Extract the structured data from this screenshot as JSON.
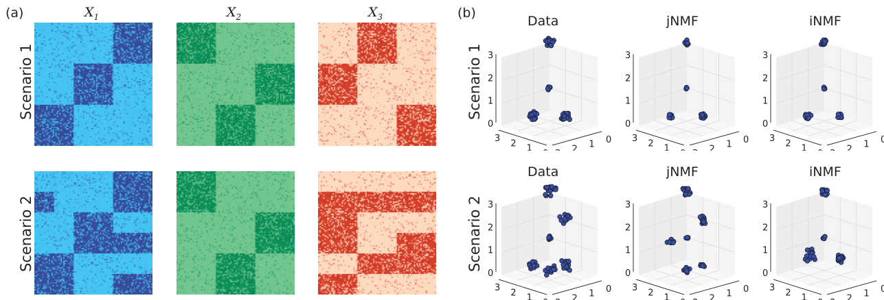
{
  "panel_a_label": "(a)",
  "panel_b_label": "(b)",
  "matrix_titles": [
    {
      "base": "X",
      "sub": "1"
    },
    {
      "base": "X",
      "sub": "2"
    },
    {
      "base": "X",
      "sub": "3"
    }
  ],
  "row_labels": [
    "Scenario 1",
    "Scenario 2"
  ],
  "scatter_titles": [
    "Data",
    "jNMF",
    "iNMF"
  ],
  "colors": {
    "x1_bg": "#3ec1f3",
    "x1_block": "#3c53a8",
    "x2_bg": "#6cc38a",
    "x2_block": "#0e9a60",
    "x3_bg": "#fcd9bd",
    "x3_block": "#e5432d",
    "point": "#3b4fa0",
    "pane": "#ededed"
  },
  "chart_data": [
    {
      "type": "heatmap",
      "title": "X1 — Scenario 1",
      "grid_size": 3,
      "block_pattern": [
        [
          0,
          0,
          1
        ],
        [
          0,
          1,
          0
        ],
        [
          1,
          0,
          0
        ]
      ]
    },
    {
      "type": "heatmap",
      "title": "X2 — Scenario 1",
      "grid_size": 3,
      "block_pattern": [
        [
          1,
          0,
          0
        ],
        [
          0,
          0,
          1
        ],
        [
          0,
          1,
          0
        ]
      ]
    },
    {
      "type": "heatmap",
      "title": "X3 — Scenario 1",
      "grid_size": 3,
      "block_pattern": [
        [
          0,
          1,
          0
        ],
        [
          1,
          0,
          0
        ],
        [
          0,
          0,
          1
        ]
      ]
    },
    {
      "type": "heatmap",
      "title": "X1 — Scenario 2",
      "grid_size": 6,
      "block_pattern": [
        [
          0,
          0,
          0,
          0,
          1,
          1
        ],
        [
          1,
          0,
          0,
          0,
          1,
          1
        ],
        [
          0,
          0,
          1,
          1,
          0,
          0
        ],
        [
          0,
          0,
          1,
          1,
          1,
          1
        ],
        [
          1,
          1,
          0,
          0,
          0,
          0
        ],
        [
          1,
          1,
          0,
          0,
          1,
          1
        ]
      ]
    },
    {
      "type": "heatmap",
      "title": "X2 — Scenario 2",
      "grid_size": 6,
      "block_pattern": [
        [
          1,
          1,
          0,
          0,
          0,
          0
        ],
        [
          1,
          1,
          0,
          0,
          0,
          0
        ],
        [
          0,
          0,
          0,
          0,
          1,
          1
        ],
        [
          0,
          0,
          0,
          0,
          1,
          1
        ],
        [
          0,
          0,
          1,
          1,
          0,
          0
        ],
        [
          0,
          0,
          1,
          1,
          0,
          0
        ]
      ]
    },
    {
      "type": "heatmap",
      "title": "X3 — Scenario 2",
      "grid_size": 6,
      "block_pattern": [
        [
          0,
          0,
          0,
          0,
          0,
          0
        ],
        [
          1,
          1,
          1,
          1,
          1,
          1
        ],
        [
          1,
          1,
          0,
          0,
          0,
          0
        ],
        [
          1,
          1,
          0,
          0,
          1,
          1
        ],
        [
          0,
          0,
          1,
          1,
          1,
          1
        ],
        [
          1,
          1,
          0,
          0,
          0,
          0
        ]
      ]
    },
    {
      "type": "scatter",
      "title": "Data",
      "scenario": "Scenario 1",
      "axis_range": [
        0,
        3
      ],
      "tick_labels": [
        "0",
        "1",
        "2",
        "3"
      ],
      "clusters": [
        {
          "x": 0,
          "y": 0,
          "z": 3,
          "spread": 0.15,
          "n": 18
        },
        {
          "x": 1,
          "y": 0,
          "z": 0,
          "spread": 0.15,
          "n": 18
        },
        {
          "x": 0,
          "y": 1,
          "z": 0,
          "spread": 0.15,
          "n": 18
        },
        {
          "x": 0,
          "y": 0,
          "z": 1,
          "spread": 0.08,
          "n": 6
        }
      ]
    },
    {
      "type": "scatter",
      "title": "jNMF",
      "scenario": "Scenario 1",
      "axis_range": [
        0,
        3
      ],
      "tick_labels": [
        "0",
        "1",
        "2",
        "3"
      ],
      "clusters": [
        {
          "x": 0,
          "y": 0,
          "z": 3,
          "spread": 0.08,
          "n": 14
        },
        {
          "x": 1,
          "y": 0,
          "z": 0,
          "spread": 0.08,
          "n": 14
        },
        {
          "x": 0,
          "y": 1,
          "z": 0,
          "spread": 0.08,
          "n": 14
        },
        {
          "x": 0,
          "y": 0,
          "z": 1,
          "spread": 0.04,
          "n": 4
        }
      ]
    },
    {
      "type": "scatter",
      "title": "iNMF",
      "scenario": "Scenario 1",
      "axis_range": [
        0,
        3
      ],
      "tick_labels": [
        "0",
        "1",
        "2",
        "3"
      ],
      "clusters": [
        {
          "x": 0,
          "y": 0,
          "z": 3,
          "spread": 0.1,
          "n": 14
        },
        {
          "x": 1,
          "y": 0,
          "z": 0,
          "spread": 0.1,
          "n": 14
        },
        {
          "x": 0,
          "y": 1,
          "z": 0,
          "spread": 0.1,
          "n": 14
        },
        {
          "x": 0,
          "y": 0,
          "z": 1,
          "spread": 0.04,
          "n": 4
        }
      ]
    },
    {
      "type": "scatter",
      "title": "Data",
      "scenario": "Scenario 2",
      "axis_range": [
        0,
        3
      ],
      "tick_labels": [
        "0",
        "1",
        "2",
        "3"
      ],
      "clusters": [
        {
          "x": 0,
          "y": 0,
          "z": 3,
          "spread": 0.22,
          "n": 18
        },
        {
          "x": 1,
          "y": 0,
          "z": 2,
          "spread": 0.22,
          "n": 12
        },
        {
          "x": 0,
          "y": 1,
          "z": 0,
          "spread": 0.15,
          "n": 12
        },
        {
          "x": 1,
          "y": 1,
          "z": 0,
          "spread": 0.2,
          "n": 12
        },
        {
          "x": 1,
          "y": 0,
          "z": 0,
          "spread": 0.22,
          "n": 12
        },
        {
          "x": 0,
          "y": 0,
          "z": 1,
          "spread": 0.08,
          "n": 6
        }
      ]
    },
    {
      "type": "scatter",
      "title": "jNMF",
      "scenario": "Scenario 2",
      "axis_range": [
        0,
        3
      ],
      "tick_labels": [
        "0",
        "1",
        "2",
        "3"
      ],
      "clusters": [
        {
          "x": 0,
          "y": 0,
          "z": 3,
          "spread": 0.15,
          "n": 16
        },
        {
          "x": 1,
          "y": 0,
          "z": 2,
          "spread": 0.15,
          "n": 14
        },
        {
          "x": 0,
          "y": 1,
          "z": 1,
          "spread": 0.12,
          "n": 10
        },
        {
          "x": 1,
          "y": 1,
          "z": 0,
          "spread": 0.12,
          "n": 10
        },
        {
          "x": 1,
          "y": 0,
          "z": 0,
          "spread": 0.08,
          "n": 6
        },
        {
          "x": 0,
          "y": 0,
          "z": 1,
          "spread": 0.05,
          "n": 5
        }
      ]
    },
    {
      "type": "scatter",
      "title": "iNMF",
      "scenario": "Scenario 2",
      "axis_range": [
        0,
        3
      ],
      "tick_labels": [
        "0",
        "1",
        "2",
        "3"
      ],
      "clusters": [
        {
          "x": 0,
          "y": 0,
          "z": 3,
          "spread": 0.12,
          "n": 16
        },
        {
          "x": 0,
          "y": 1,
          "z": 0.5,
          "spread": 0.25,
          "n": 16
        },
        {
          "x": 1,
          "y": 0,
          "z": 0.3,
          "spread": 0.15,
          "n": 18
        },
        {
          "x": 0,
          "y": 0,
          "z": 1,
          "spread": 0.05,
          "n": 5
        }
      ]
    }
  ]
}
